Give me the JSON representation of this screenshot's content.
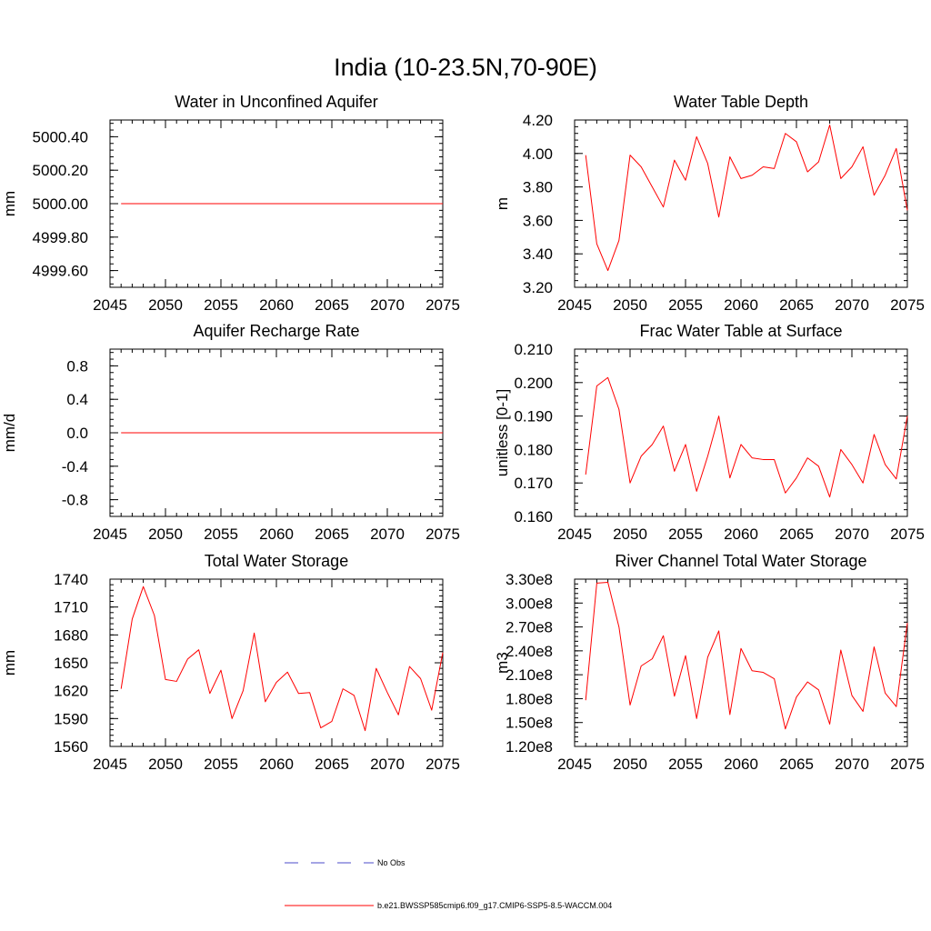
{
  "figure": {
    "title": "India (10-23.5N,70-90E)"
  },
  "chart_data": [
    {
      "type": "line",
      "title": "Water in Unconfined Aquifer",
      "ylabel": "mm",
      "xlim": [
        2045,
        2075
      ],
      "ylim": [
        4999.5,
        5000.5
      ],
      "xticks": [
        2045,
        2050,
        2055,
        2060,
        2065,
        2070,
        2075
      ],
      "xticklabels": [
        "2045",
        "2050",
        "2055",
        "2060",
        "2065",
        "2070",
        "2075"
      ],
      "yticks": [
        4999.6,
        4999.8,
        5000.0,
        5000.2,
        5000.4
      ],
      "yticklabels": [
        "4999.60",
        "4999.80",
        "5000.00",
        "5000.20",
        "5000.40"
      ],
      "x": [
        2046,
        2047,
        2048,
        2049,
        2050,
        2051,
        2052,
        2053,
        2054,
        2055,
        2056,
        2057,
        2058,
        2059,
        2060,
        2061,
        2062,
        2063,
        2064,
        2065,
        2066,
        2067,
        2068,
        2069,
        2070,
        2071,
        2072,
        2073,
        2074,
        2075
      ],
      "series": [
        {
          "color": "#ff0000",
          "values": [
            5000,
            5000,
            5000,
            5000,
            5000,
            5000,
            5000,
            5000,
            5000,
            5000,
            5000,
            5000,
            5000,
            5000,
            5000,
            5000,
            5000,
            5000,
            5000,
            5000,
            5000,
            5000,
            5000,
            5000,
            5000,
            5000,
            5000,
            5000,
            5000,
            5000
          ]
        }
      ]
    },
    {
      "type": "line",
      "title": "Water Table Depth",
      "ylabel": "m",
      "xlim": [
        2045,
        2075
      ],
      "ylim": [
        3.2,
        4.2
      ],
      "xticks": [
        2045,
        2050,
        2055,
        2060,
        2065,
        2070,
        2075
      ],
      "xticklabels": [
        "2045",
        "2050",
        "2055",
        "2060",
        "2065",
        "2070",
        "2075"
      ],
      "yticks": [
        3.2,
        3.4,
        3.6,
        3.8,
        4.0,
        4.2
      ],
      "yticklabels": [
        "3.20",
        "3.40",
        "3.60",
        "3.80",
        "4.00",
        "4.20"
      ],
      "x": [
        2046,
        2047,
        2048,
        2049,
        2050,
        2051,
        2052,
        2053,
        2054,
        2055,
        2056,
        2057,
        2058,
        2059,
        2060,
        2061,
        2062,
        2063,
        2064,
        2065,
        2066,
        2067,
        2068,
        2069,
        2070,
        2071,
        2072,
        2073,
        2074,
        2075
      ],
      "series": [
        {
          "color": "#ff0000",
          "values": [
            3.99,
            3.46,
            3.3,
            3.48,
            3.99,
            3.92,
            3.8,
            3.68,
            3.96,
            3.84,
            4.1,
            3.94,
            3.62,
            3.98,
            3.85,
            3.87,
            3.92,
            3.91,
            4.12,
            4.07,
            3.89,
            3.95,
            4.17,
            3.85,
            3.92,
            4.04,
            3.75,
            3.87,
            4.03,
            3.66
          ]
        }
      ]
    },
    {
      "type": "line",
      "title": "Aquifer Recharge Rate",
      "ylabel": "mm/d",
      "xlim": [
        2045,
        2075
      ],
      "ylim": [
        -1.0,
        1.0
      ],
      "xticks": [
        2045,
        2050,
        2055,
        2060,
        2065,
        2070,
        2075
      ],
      "xticklabels": [
        "2045",
        "2050",
        "2055",
        "2060",
        "2065",
        "2070",
        "2075"
      ],
      "yticks": [
        -0.8,
        -0.4,
        0.0,
        0.4,
        0.8
      ],
      "yticklabels": [
        "-0.8",
        "-0.4",
        "0.0",
        "0.4",
        "0.8"
      ],
      "x": [
        2046,
        2047,
        2048,
        2049,
        2050,
        2051,
        2052,
        2053,
        2054,
        2055,
        2056,
        2057,
        2058,
        2059,
        2060,
        2061,
        2062,
        2063,
        2064,
        2065,
        2066,
        2067,
        2068,
        2069,
        2070,
        2071,
        2072,
        2073,
        2074,
        2075
      ],
      "series": [
        {
          "color": "#ff0000",
          "values": [
            0,
            0,
            0,
            0,
            0,
            0,
            0,
            0,
            0,
            0,
            0,
            0,
            0,
            0,
            0,
            0,
            0,
            0,
            0,
            0,
            0,
            0,
            0,
            0,
            0,
            0,
            0,
            0,
            0,
            0
          ]
        }
      ]
    },
    {
      "type": "line",
      "title": "Frac Water Table at Surface",
      "ylabel": "unitless [0-1]",
      "xlim": [
        2045,
        2075
      ],
      "ylim": [
        0.16,
        0.21
      ],
      "xticks": [
        2045,
        2050,
        2055,
        2060,
        2065,
        2070,
        2075
      ],
      "xticklabels": [
        "2045",
        "2050",
        "2055",
        "2060",
        "2065",
        "2070",
        "2075"
      ],
      "yticks": [
        0.16,
        0.17,
        0.18,
        0.19,
        0.2,
        0.21
      ],
      "yticklabels": [
        "0.160",
        "0.170",
        "0.180",
        "0.190",
        "0.200",
        "0.210"
      ],
      "x": [
        2046,
        2047,
        2048,
        2049,
        2050,
        2051,
        2052,
        2053,
        2054,
        2055,
        2056,
        2057,
        2058,
        2059,
        2060,
        2061,
        2062,
        2063,
        2064,
        2065,
        2066,
        2067,
        2068,
        2069,
        2070,
        2071,
        2072,
        2073,
        2074,
        2075
      ],
      "series": [
        {
          "color": "#ff0000",
          "values": [
            0.1725,
            0.199,
            0.2015,
            0.192,
            0.17,
            0.178,
            0.1815,
            0.187,
            0.1735,
            0.1815,
            0.1675,
            0.178,
            0.19,
            0.1715,
            0.1815,
            0.1775,
            0.177,
            0.177,
            0.167,
            0.1715,
            0.1775,
            0.175,
            0.1658,
            0.18,
            0.1755,
            0.17,
            0.1845,
            0.1755,
            0.1712,
            0.19
          ]
        }
      ]
    },
    {
      "type": "line",
      "title": "Total Water Storage",
      "ylabel": "mm",
      "xlim": [
        2045,
        2075
      ],
      "ylim": [
        1560,
        1740
      ],
      "xticks": [
        2045,
        2050,
        2055,
        2060,
        2065,
        2070,
        2075
      ],
      "xticklabels": [
        "2045",
        "2050",
        "2055",
        "2060",
        "2065",
        "2070",
        "2075"
      ],
      "yticks": [
        1560,
        1590,
        1620,
        1650,
        1680,
        1710,
        1740
      ],
      "yticklabels": [
        "1560",
        "1590",
        "1620",
        "1650",
        "1680",
        "1710",
        "1740"
      ],
      "x": [
        2046,
        2047,
        2048,
        2049,
        2050,
        2051,
        2052,
        2053,
        2054,
        2055,
        2056,
        2057,
        2058,
        2059,
        2060,
        2061,
        2062,
        2063,
        2064,
        2065,
        2066,
        2067,
        2068,
        2069,
        2070,
        2071,
        2072,
        2073,
        2074,
        2075
      ],
      "series": [
        {
          "color": "#ff0000",
          "values": [
            1622,
            1697,
            1732,
            1701,
            1632,
            1630,
            1654,
            1664,
            1617,
            1642,
            1590,
            1620,
            1682,
            1608,
            1629,
            1640,
            1617,
            1618,
            1580,
            1587,
            1622,
            1615,
            1577,
            1644,
            1618,
            1594,
            1646,
            1633,
            1599,
            1661
          ]
        }
      ]
    },
    {
      "type": "line",
      "title": "River Channel Total Water Storage",
      "ylabel": "m3",
      "xlim": [
        2045,
        2075
      ],
      "ylim": [
        120000000,
        330000000
      ],
      "xticks": [
        2045,
        2050,
        2055,
        2060,
        2065,
        2070,
        2075
      ],
      "xticklabels": [
        "2045",
        "2050",
        "2055",
        "2060",
        "2065",
        "2070",
        "2075"
      ],
      "yticks": [
        120000000,
        150000000,
        180000000,
        210000000,
        240000000,
        270000000,
        300000000,
        330000000
      ],
      "yticklabels": [
        "1.20e8",
        "1.50e8",
        "1.80e8",
        "2.10e8",
        "2.40e8",
        "2.70e8",
        "3.00e8",
        "3.30e8"
      ],
      "x": [
        2046,
        2047,
        2048,
        2049,
        2050,
        2051,
        2052,
        2053,
        2054,
        2055,
        2056,
        2057,
        2058,
        2059,
        2060,
        2061,
        2062,
        2063,
        2064,
        2065,
        2066,
        2067,
        2068,
        2069,
        2070,
        2071,
        2072,
        2073,
        2074,
        2075
      ],
      "series": [
        {
          "color": "#ff0000",
          "values": [
            178000000,
            325000000,
            326000000,
            270000000,
            172000000,
            221000000,
            230000000,
            259000000,
            183000000,
            234000000,
            155000000,
            232000000,
            265000000,
            160000000,
            243000000,
            215000000,
            213000000,
            205000000,
            142000000,
            182000000,
            201000000,
            191000000,
            148000000,
            241000000,
            184000000,
            164000000,
            245000000,
            187000000,
            170000000,
            275000000
          ]
        }
      ]
    }
  ],
  "legend": {
    "items": [
      {
        "label": "No Obs",
        "color": "#4b4bc8",
        "style": "dashed"
      },
      {
        "label": "b.e21.BWSSP585cmip6.f09_g17.CMIP6-SSP5-8.5-WACCM.004",
        "color": "#ff0000",
        "style": "solid"
      }
    ]
  }
}
